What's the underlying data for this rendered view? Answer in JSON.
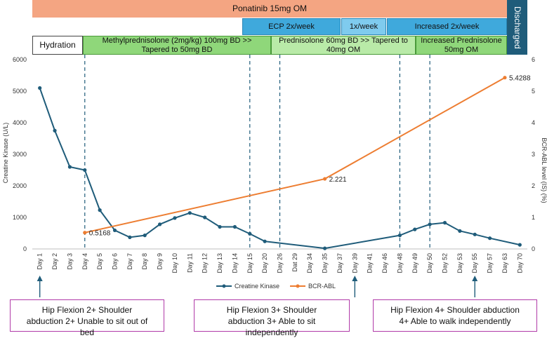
{
  "bands": {
    "ponatinib": "Ponatinib 15mg OM",
    "discharged": "Discharged",
    "ecp1": "ECP 2x/week",
    "ecp2": "1x/week",
    "ecp3": "Increased 2x/week",
    "hydration": "Hydration",
    "methyl": "Methylprednisolone (2mg/kg) 100mg BD >> Tapered to 50mg BD",
    "pred1": "Prednisolone 60mg BD >> Tapered to 40mg OM",
    "pred2": "Increased Prednisolone 50mg OM"
  },
  "notes": {
    "n1": "Hip Flexion 2+ Shoulder abduction 2+ Unable to sit out of bed",
    "n2": "Hip Flexion 3+ Shoulder abduction 3+ Able to sit independently",
    "n3": "Hip Flexion 4+ Shoulder abduction 4+ Able to walk independently"
  },
  "colors": {
    "ck": "#1f5c7a",
    "bcr": "#ed7d31",
    "ponatinib": "#f4a582",
    "ecp": "#3fa9dc",
    "steroid": "#8fd77a",
    "discharged": "#1f5c7a",
    "note_border": "#b03aa8"
  },
  "chart_data": {
    "type": "line",
    "categories": [
      "Day 1",
      "Day 2",
      "Day 3",
      "Day 4",
      "Day 5",
      "Day 6",
      "Day 7",
      "Day 8",
      "Day 9",
      "Day 10",
      "Day 11",
      "Day 12",
      "Day 13",
      "Day 14",
      "Day 15",
      "Day 20",
      "Day 26",
      "Dat 29",
      "Day 34",
      "Day 35",
      "Day 37",
      "Day 39",
      "Day 41",
      "Day 46",
      "Day 48",
      "Day 49",
      "Day 50",
      "Day 52",
      "Day 53",
      "Day 55",
      "Day 57",
      "Day 63",
      "Day 70"
    ],
    "series": [
      {
        "name": "Creatine Kinase",
        "axis": "left",
        "points": [
          [
            "Day 1",
            5100
          ],
          [
            "Day 2",
            3750
          ],
          [
            "Day 3",
            2600
          ],
          [
            "Day 4",
            2500
          ],
          [
            "Day 5",
            1230
          ],
          [
            "Day 6",
            590
          ],
          [
            "Day 7",
            370
          ],
          [
            "Day 8",
            430
          ],
          [
            "Day 9",
            780
          ],
          [
            "Day 10",
            980
          ],
          [
            "Day 11",
            1140
          ],
          [
            "Day 12",
            1000
          ],
          [
            "Day 13",
            700
          ],
          [
            "Day 14",
            700
          ],
          [
            "Day 15",
            480
          ],
          [
            "Day 20",
            240
          ],
          [
            "Day 35",
            20
          ],
          [
            "Day 48",
            430
          ],
          [
            "Day 49",
            620
          ],
          [
            "Day 50",
            780
          ],
          [
            "Day 52",
            830
          ],
          [
            "Day 53",
            570
          ],
          [
            "Day 55",
            460
          ],
          [
            "Day 57",
            340
          ],
          [
            "Day 70",
            130
          ]
        ]
      },
      {
        "name": "BCR-ABL",
        "axis": "right",
        "points": [
          [
            "Day 4",
            0.5168
          ],
          [
            "Day 35",
            2.221
          ],
          [
            "Day 63",
            5.4288
          ]
        ]
      }
    ],
    "data_labels": [
      "0.5168",
      "2.221",
      "5.4288"
    ],
    "ylabel": "Creatine Kinase (U/L)",
    "y2label": "BCR-ABL level (IS) (%)",
    "ylim": [
      0,
      6000
    ],
    "y2lim": [
      0,
      6
    ],
    "yticks": [
      "0",
      "1000",
      "2000",
      "3000",
      "4000",
      "5000",
      "6000"
    ],
    "y2ticks": [
      "0",
      "1",
      "2",
      "3",
      "4",
      "5",
      "6"
    ],
    "event_days": [
      "Day 4",
      "Day 15",
      "Day 26",
      "Day 48",
      "Day 50"
    ],
    "arrow_days": [
      "Day 1",
      "Day 39",
      "Day 55"
    ],
    "legend": [
      "Creatine Kinase",
      "BCR-ABL"
    ]
  }
}
